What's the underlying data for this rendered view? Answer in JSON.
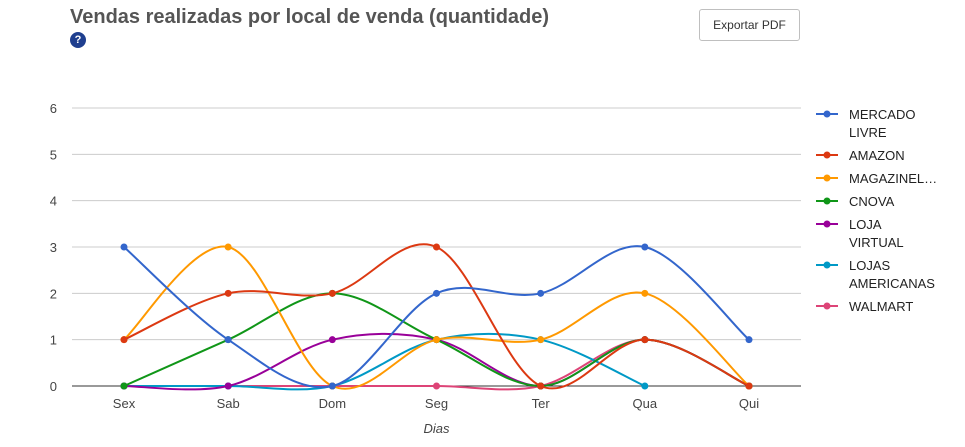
{
  "header": {
    "title": "Vendas realizadas por local de venda (quantidade)",
    "help_icon": "question-icon",
    "export_label": "Exportar PDF"
  },
  "chart_data": {
    "type": "line",
    "categories": [
      "Sex",
      "Sab",
      "Dom",
      "Seg",
      "Ter",
      "Qua",
      "Qui"
    ],
    "xlabel": "Dias",
    "ylabel": "",
    "ylim": [
      0,
      6
    ],
    "yticks": [
      0,
      1,
      2,
      3,
      4,
      5,
      6
    ],
    "grid": true,
    "smooth": true,
    "legend_position": "right",
    "series": [
      {
        "name": "MERCADO LIVRE",
        "legend_lines": [
          "MERCADO",
          "LIVRE"
        ],
        "color": "#3366cc",
        "values": [
          3,
          1,
          0,
          2,
          2,
          3,
          1
        ]
      },
      {
        "name": "AMAZON",
        "legend_lines": [
          "AMAZON"
        ],
        "color": "#dc3912",
        "values": [
          1,
          2,
          2,
          3,
          0,
          1,
          0
        ]
      },
      {
        "name": "MAGAZINEL...",
        "legend_lines": [
          "MAGAZINEL…"
        ],
        "color": "#ff9900",
        "values": [
          1,
          3,
          0,
          1,
          1,
          2,
          0
        ]
      },
      {
        "name": "CNOVA",
        "legend_lines": [
          "CNOVA"
        ],
        "color": "#109618",
        "values": [
          0,
          1,
          2,
          1,
          0,
          1,
          0
        ]
      },
      {
        "name": "LOJA VIRTUAL",
        "legend_lines": [
          "LOJA",
          "VIRTUAL"
        ],
        "color": "#990099",
        "values": [
          0,
          0,
          1,
          1,
          0,
          1,
          0
        ]
      },
      {
        "name": "LOJAS AMERICANAS",
        "legend_lines": [
          "LOJAS",
          "AMERICANAS"
        ],
        "color": "#0099c6",
        "values": [
          0,
          0,
          0,
          1,
          1,
          0,
          null
        ]
      },
      {
        "name": "WALMART",
        "legend_lines": [
          "WALMART"
        ],
        "color": "#dd4477",
        "values": [
          0,
          0,
          0,
          0,
          0,
          1,
          0
        ]
      }
    ]
  }
}
